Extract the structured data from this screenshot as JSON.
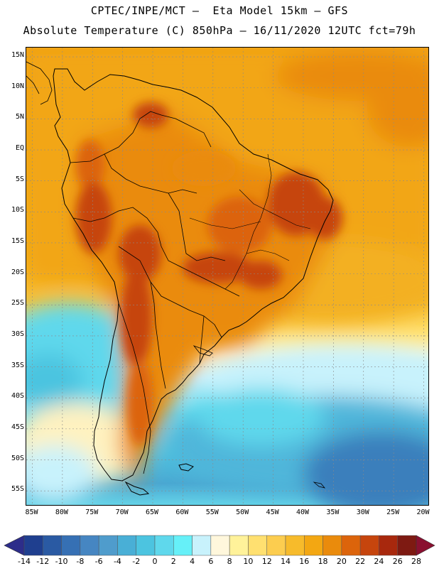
{
  "header": {
    "line1": "CPTEC/INPE/MCT –  Eta Model 15km – GFS",
    "line2": "Absolute Temperature (C) 850hPa – 16/11/2020 12UTC fct=79h"
  },
  "map": {
    "lat_labels": [
      "15N",
      "10N",
      "5N",
      "EQ",
      "5S",
      "10S",
      "15S",
      "20S",
      "25S",
      "30S",
      "35S",
      "40S",
      "45S",
      "50S",
      "55S"
    ],
    "lon_labels": [
      "85W",
      "80W",
      "75W",
      "70W",
      "65W",
      "60W",
      "55W",
      "50W",
      "45W",
      "40W",
      "35W",
      "30W",
      "25W",
      "20W"
    ],
    "lat_values": [
      15,
      10,
      5,
      0,
      -5,
      -10,
      -15,
      -20,
      -25,
      -30,
      -35,
      -40,
      -45,
      -50,
      -55
    ],
    "lon_values": [
      -85,
      -80,
      -75,
      -70,
      -65,
      -60,
      -55,
      -50,
      -45,
      -40,
      -35,
      -30,
      -25,
      -20
    ],
    "extent": {
      "lon_min": -86,
      "lon_max": -19,
      "lat_min": -57.5,
      "lat_max": 16.5
    }
  },
  "colorbar": {
    "labels": [
      "-14",
      "-12",
      "-10",
      "-8",
      "-6",
      "-4",
      "-2",
      "0",
      "2",
      "4",
      "6",
      "8",
      "10",
      "12",
      "14",
      "16",
      "18",
      "20",
      "22",
      "24",
      "26",
      "28"
    ],
    "colors": [
      "#1f3f8f",
      "#2a5aa3",
      "#3670b4",
      "#4686c2",
      "#4f9ccc",
      "#49afd6",
      "#4cc4e0",
      "#5fd8ec",
      "#66f0f8",
      "#c8f2fc",
      "#fff7dc",
      "#fff29a",
      "#ffe070",
      "#fccd4f",
      "#f7bb2b",
      "#f3a712",
      "#ea8b0c",
      "#dc640b",
      "#c6450d",
      "#a8280d",
      "#7e1a12"
    ],
    "under_color": "#2d2d8a",
    "over_color": "#8a1030"
  }
}
